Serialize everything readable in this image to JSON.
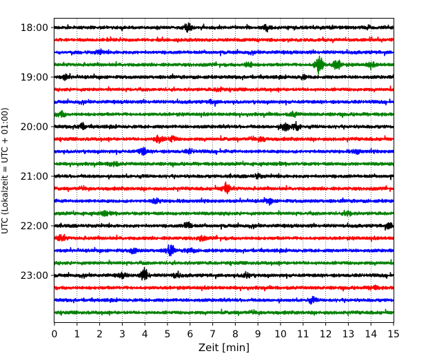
{
  "chart_data": {
    "type": "line",
    "title": "",
    "xlabel": "Zeit  [min]",
    "ylabel": "UTC (Lokalzeit = UTC + 01:00)",
    "xlim": [
      0,
      15
    ],
    "x_ticks": [
      "0",
      "1",
      "2",
      "3",
      "4",
      "5",
      "6",
      "7",
      "8",
      "9",
      "10",
      "11",
      "12",
      "13",
      "14",
      "15"
    ],
    "y_ticks": [
      "18:00",
      "19:00",
      "20:00",
      "21:00",
      "22:00",
      "23:00"
    ],
    "grid": "vertical dotted lines at each minute",
    "trace_interval_minutes": 15,
    "color_cycle": [
      "#000000",
      "#ff0000",
      "#0000ff",
      "#008000"
    ],
    "series": [
      {
        "start": "18:00",
        "color": "#000000",
        "events": [
          {
            "t": 5.9,
            "amp": 0.9
          },
          {
            "t": 9.4,
            "amp": 0.6
          }
        ]
      },
      {
        "start": "18:15",
        "color": "#ff0000",
        "events": []
      },
      {
        "start": "18:30",
        "color": "#0000ff",
        "events": [
          {
            "t": 2.0,
            "amp": 0.4
          }
        ]
      },
      {
        "start": "18:45",
        "color": "#008000",
        "events": [
          {
            "t": 8.6,
            "amp": 0.6
          },
          {
            "t": 11.7,
            "amp": 2.1
          },
          {
            "t": 12.5,
            "amp": 1.2
          },
          {
            "t": 14.0,
            "amp": 0.5
          }
        ]
      },
      {
        "start": "19:00",
        "color": "#000000",
        "events": [
          {
            "t": 0.5,
            "amp": 0.5
          },
          {
            "t": 11.0,
            "amp": 0.4
          }
        ]
      },
      {
        "start": "19:15",
        "color": "#ff0000",
        "events": [
          {
            "t": 7.3,
            "amp": 0.4
          }
        ]
      },
      {
        "start": "19:30",
        "color": "#0000ff",
        "events": [
          {
            "t": 7.0,
            "amp": 0.4
          }
        ]
      },
      {
        "start": "19:45",
        "color": "#008000",
        "events": [
          {
            "t": 0.3,
            "amp": 0.6
          },
          {
            "t": 10.6,
            "amp": 0.5
          }
        ]
      },
      {
        "start": "20:00",
        "color": "#000000",
        "events": [
          {
            "t": 1.2,
            "amp": 0.6
          },
          {
            "t": 10.2,
            "amp": 1.1
          },
          {
            "t": 10.7,
            "amp": 0.9
          }
        ]
      },
      {
        "start": "20:15",
        "color": "#ff0000",
        "events": [
          {
            "t": 4.6,
            "amp": 1.0
          },
          {
            "t": 5.2,
            "amp": 0.6
          },
          {
            "t": 9.2,
            "amp": 0.4
          }
        ]
      },
      {
        "start": "20:30",
        "color": "#0000ff",
        "events": [
          {
            "t": 3.9,
            "amp": 0.8
          },
          {
            "t": 6.0,
            "amp": 0.4
          },
          {
            "t": 13.4,
            "amp": 0.4
          }
        ]
      },
      {
        "start": "20:45",
        "color": "#008000",
        "events": [
          {
            "t": 2.6,
            "amp": 0.7
          }
        ]
      },
      {
        "start": "21:00",
        "color": "#000000",
        "events": [
          {
            "t": 9.0,
            "amp": 0.4
          }
        ]
      },
      {
        "start": "21:15",
        "color": "#ff0000",
        "events": [
          {
            "t": 7.6,
            "amp": 1.3
          }
        ]
      },
      {
        "start": "21:30",
        "color": "#0000ff",
        "events": [
          {
            "t": 4.5,
            "amp": 0.6
          },
          {
            "t": 9.5,
            "amp": 0.5
          }
        ]
      },
      {
        "start": "21:45",
        "color": "#008000",
        "events": [
          {
            "t": 2.2,
            "amp": 0.4
          },
          {
            "t": 13.0,
            "amp": 0.5
          }
        ]
      },
      {
        "start": "22:00",
        "color": "#000000",
        "events": [
          {
            "t": 5.9,
            "amp": 0.9
          },
          {
            "t": 14.8,
            "amp": 0.6
          }
        ]
      },
      {
        "start": "22:15",
        "color": "#ff0000",
        "events": [
          {
            "t": 0.3,
            "amp": 0.8
          },
          {
            "t": 6.5,
            "amp": 0.5
          }
        ]
      },
      {
        "start": "22:30",
        "color": "#0000ff",
        "events": [
          {
            "t": 3.5,
            "amp": 0.6
          },
          {
            "t": 5.1,
            "amp": 1.2
          },
          {
            "t": 6.0,
            "amp": 0.5
          }
        ]
      },
      {
        "start": "22:45",
        "color": "#008000",
        "events": []
      },
      {
        "start": "23:00",
        "color": "#000000",
        "events": [
          {
            "t": 3.0,
            "amp": 0.5
          },
          {
            "t": 4.0,
            "amp": 1.3
          },
          {
            "t": 5.4,
            "amp": 0.5
          },
          {
            "t": 8.5,
            "amp": 0.6
          }
        ]
      },
      {
        "start": "23:15",
        "color": "#ff0000",
        "events": [
          {
            "t": 14.1,
            "amp": 0.5
          }
        ]
      },
      {
        "start": "23:30",
        "color": "#0000ff",
        "events": [
          {
            "t": 11.4,
            "amp": 0.6
          }
        ]
      },
      {
        "start": "23:45",
        "color": "#008000",
        "events": []
      }
    ]
  }
}
